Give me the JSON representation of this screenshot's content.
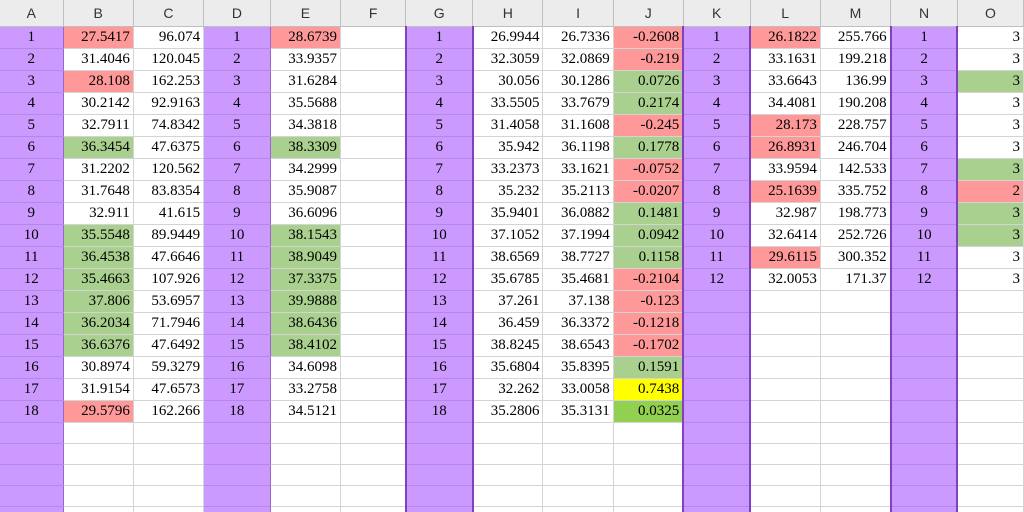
{
  "colors": {
    "purple": "#cc99ff",
    "red": "#ff9999",
    "green": "#a9d08e",
    "yellow": "#ffff00",
    "brightgreen": "#92d050"
  },
  "columns": [
    "A",
    "B",
    "C",
    "D",
    "E",
    "F",
    "G",
    "H",
    "I",
    "J",
    "K",
    "L",
    "M",
    "N",
    "O"
  ],
  "grid": [
    [
      [
        "1",
        ""
      ],
      [
        "27.5417",
        "r"
      ],
      [
        "96.074",
        ""
      ],
      [
        "1",
        ""
      ],
      [
        "28.6739",
        "r"
      ],
      [
        "",
        ""
      ],
      [
        "1",
        ""
      ],
      [
        "26.9944",
        ""
      ],
      [
        "26.7336",
        ""
      ],
      [
        "-0.2608",
        "r"
      ],
      [
        "1",
        ""
      ],
      [
        "26.1822",
        "r"
      ],
      [
        "255.766",
        ""
      ],
      [
        "1",
        ""
      ],
      [
        "3",
        ""
      ]
    ],
    [
      [
        "2",
        ""
      ],
      [
        "31.4046",
        ""
      ],
      [
        "120.045",
        ""
      ],
      [
        "2",
        ""
      ],
      [
        "33.9357",
        ""
      ],
      [
        "",
        ""
      ],
      [
        "2",
        ""
      ],
      [
        "32.3059",
        ""
      ],
      [
        "32.0869",
        ""
      ],
      [
        "-0.219",
        "r"
      ],
      [
        "2",
        ""
      ],
      [
        "33.1631",
        ""
      ],
      [
        "199.218",
        ""
      ],
      [
        "2",
        ""
      ],
      [
        "3",
        ""
      ]
    ],
    [
      [
        "3",
        ""
      ],
      [
        "28.108",
        "r"
      ],
      [
        "162.253",
        ""
      ],
      [
        "3",
        ""
      ],
      [
        "31.6284",
        ""
      ],
      [
        "",
        ""
      ],
      [
        "3",
        ""
      ],
      [
        "30.056",
        ""
      ],
      [
        "30.1286",
        ""
      ],
      [
        "0.0726",
        "g"
      ],
      [
        "3",
        ""
      ],
      [
        "33.6643",
        ""
      ],
      [
        "136.99",
        ""
      ],
      [
        "3",
        ""
      ],
      [
        "3",
        "g"
      ]
    ],
    [
      [
        "4",
        ""
      ],
      [
        "30.2142",
        ""
      ],
      [
        "92.9163",
        ""
      ],
      [
        "4",
        ""
      ],
      [
        "35.5688",
        ""
      ],
      [
        "",
        ""
      ],
      [
        "4",
        ""
      ],
      [
        "33.5505",
        ""
      ],
      [
        "33.7679",
        ""
      ],
      [
        "0.2174",
        "g"
      ],
      [
        "4",
        ""
      ],
      [
        "34.4081",
        ""
      ],
      [
        "190.208",
        ""
      ],
      [
        "4",
        ""
      ],
      [
        "3",
        ""
      ]
    ],
    [
      [
        "5",
        ""
      ],
      [
        "32.7911",
        ""
      ],
      [
        "74.8342",
        ""
      ],
      [
        "5",
        ""
      ],
      [
        "34.3818",
        ""
      ],
      [
        "",
        ""
      ],
      [
        "5",
        ""
      ],
      [
        "31.4058",
        ""
      ],
      [
        "31.1608",
        ""
      ],
      [
        "-0.245",
        "r"
      ],
      [
        "5",
        ""
      ],
      [
        "28.173",
        "r"
      ],
      [
        "228.757",
        ""
      ],
      [
        "5",
        ""
      ],
      [
        "3",
        ""
      ]
    ],
    [
      [
        "6",
        ""
      ],
      [
        "36.3454",
        "g"
      ],
      [
        "47.6375",
        ""
      ],
      [
        "6",
        ""
      ],
      [
        "38.3309",
        "g"
      ],
      [
        "",
        ""
      ],
      [
        "6",
        ""
      ],
      [
        "35.942",
        ""
      ],
      [
        "36.1198",
        ""
      ],
      [
        "0.1778",
        "g"
      ],
      [
        "6",
        ""
      ],
      [
        "26.8931",
        "r"
      ],
      [
        "246.704",
        ""
      ],
      [
        "6",
        ""
      ],
      [
        "3",
        ""
      ]
    ],
    [
      [
        "7",
        ""
      ],
      [
        "31.2202",
        ""
      ],
      [
        "120.562",
        ""
      ],
      [
        "7",
        ""
      ],
      [
        "34.2999",
        ""
      ],
      [
        "",
        ""
      ],
      [
        "7",
        ""
      ],
      [
        "33.2373",
        ""
      ],
      [
        "33.1621",
        ""
      ],
      [
        "-0.0752",
        "r"
      ],
      [
        "7",
        ""
      ],
      [
        "33.9594",
        ""
      ],
      [
        "142.533",
        ""
      ],
      [
        "7",
        ""
      ],
      [
        "3",
        "g"
      ]
    ],
    [
      [
        "8",
        ""
      ],
      [
        "31.7648",
        ""
      ],
      [
        "83.8354",
        ""
      ],
      [
        "8",
        ""
      ],
      [
        "35.9087",
        ""
      ],
      [
        "",
        ""
      ],
      [
        "8",
        ""
      ],
      [
        "35.232",
        ""
      ],
      [
        "35.2113",
        ""
      ],
      [
        "-0.0207",
        "r"
      ],
      [
        "8",
        ""
      ],
      [
        "25.1639",
        "r"
      ],
      [
        "335.752",
        ""
      ],
      [
        "8",
        ""
      ],
      [
        "2",
        "r"
      ]
    ],
    [
      [
        "9",
        ""
      ],
      [
        "32.911",
        ""
      ],
      [
        "41.615",
        ""
      ],
      [
        "9",
        ""
      ],
      [
        "36.6096",
        ""
      ],
      [
        "",
        ""
      ],
      [
        "9",
        ""
      ],
      [
        "35.9401",
        ""
      ],
      [
        "36.0882",
        ""
      ],
      [
        "0.1481",
        "g"
      ],
      [
        "9",
        ""
      ],
      [
        "32.987",
        ""
      ],
      [
        "198.773",
        ""
      ],
      [
        "9",
        ""
      ],
      [
        "3",
        "g"
      ]
    ],
    [
      [
        "10",
        ""
      ],
      [
        "35.5548",
        "g"
      ],
      [
        "89.9449",
        ""
      ],
      [
        "10",
        ""
      ],
      [
        "38.1543",
        "g"
      ],
      [
        "",
        ""
      ],
      [
        "10",
        ""
      ],
      [
        "37.1052",
        ""
      ],
      [
        "37.1994",
        ""
      ],
      [
        "0.0942",
        "g"
      ],
      [
        "10",
        ""
      ],
      [
        "32.6414",
        ""
      ],
      [
        "252.726",
        ""
      ],
      [
        "10",
        ""
      ],
      [
        "3",
        "g"
      ]
    ],
    [
      [
        "11",
        ""
      ],
      [
        "36.4538",
        "g"
      ],
      [
        "47.6646",
        ""
      ],
      [
        "11",
        ""
      ],
      [
        "38.9049",
        "g"
      ],
      [
        "",
        ""
      ],
      [
        "11",
        ""
      ],
      [
        "38.6569",
        ""
      ],
      [
        "38.7727",
        ""
      ],
      [
        "0.1158",
        "g"
      ],
      [
        "11",
        ""
      ],
      [
        "29.6115",
        "r"
      ],
      [
        "300.352",
        ""
      ],
      [
        "11",
        ""
      ],
      [
        "3",
        ""
      ]
    ],
    [
      [
        "12",
        ""
      ],
      [
        "35.4663",
        "g"
      ],
      [
        "107.926",
        ""
      ],
      [
        "12",
        ""
      ],
      [
        "37.3375",
        "g"
      ],
      [
        "",
        ""
      ],
      [
        "12",
        ""
      ],
      [
        "35.6785",
        ""
      ],
      [
        "35.4681",
        ""
      ],
      [
        "-0.2104",
        "r"
      ],
      [
        "12",
        ""
      ],
      [
        "32.0053",
        ""
      ],
      [
        "171.37",
        ""
      ],
      [
        "12",
        ""
      ],
      [
        "3",
        ""
      ]
    ],
    [
      [
        "13",
        ""
      ],
      [
        "37.806",
        "g"
      ],
      [
        "53.6957",
        ""
      ],
      [
        "13",
        ""
      ],
      [
        "39.9888",
        "g"
      ],
      [
        "",
        ""
      ],
      [
        "13",
        ""
      ],
      [
        "37.261",
        ""
      ],
      [
        "37.138",
        ""
      ],
      [
        "-0.123",
        "r"
      ],
      [
        "",
        ""
      ],
      [
        "",
        ""
      ],
      [
        "",
        ""
      ],
      [
        "",
        ""
      ],
      [
        "",
        ""
      ]
    ],
    [
      [
        "14",
        ""
      ],
      [
        "36.2034",
        "g"
      ],
      [
        "71.7946",
        ""
      ],
      [
        "14",
        ""
      ],
      [
        "38.6436",
        "g"
      ],
      [
        "",
        ""
      ],
      [
        "14",
        ""
      ],
      [
        "36.459",
        ""
      ],
      [
        "36.3372",
        ""
      ],
      [
        "-0.1218",
        "r"
      ],
      [
        "",
        ""
      ],
      [
        "",
        ""
      ],
      [
        "",
        ""
      ],
      [
        "",
        ""
      ],
      [
        "",
        ""
      ]
    ],
    [
      [
        "15",
        ""
      ],
      [
        "36.6376",
        "g"
      ],
      [
        "47.6492",
        ""
      ],
      [
        "15",
        ""
      ],
      [
        "38.4102",
        "g"
      ],
      [
        "",
        ""
      ],
      [
        "15",
        ""
      ],
      [
        "38.8245",
        ""
      ],
      [
        "38.6543",
        ""
      ],
      [
        "-0.1702",
        "r"
      ],
      [
        "",
        ""
      ],
      [
        "",
        ""
      ],
      [
        "",
        ""
      ],
      [
        "",
        ""
      ],
      [
        "",
        ""
      ]
    ],
    [
      [
        "16",
        ""
      ],
      [
        "30.8974",
        ""
      ],
      [
        "59.3279",
        ""
      ],
      [
        "16",
        ""
      ],
      [
        "34.6098",
        ""
      ],
      [
        "",
        ""
      ],
      [
        "16",
        ""
      ],
      [
        "35.6804",
        ""
      ],
      [
        "35.8395",
        ""
      ],
      [
        "0.1591",
        "g"
      ],
      [
        "",
        ""
      ],
      [
        "",
        ""
      ],
      [
        "",
        ""
      ],
      [
        "",
        ""
      ],
      [
        "",
        ""
      ]
    ],
    [
      [
        "17",
        ""
      ],
      [
        "31.9154",
        ""
      ],
      [
        "47.6573",
        ""
      ],
      [
        "17",
        ""
      ],
      [
        "33.2758",
        ""
      ],
      [
        "",
        ""
      ],
      [
        "17",
        ""
      ],
      [
        "32.262",
        ""
      ],
      [
        "33.0058",
        ""
      ],
      [
        "0.7438",
        "y"
      ],
      [
        "",
        ""
      ],
      [
        "",
        ""
      ],
      [
        "",
        ""
      ],
      [
        "",
        ""
      ],
      [
        "",
        ""
      ]
    ],
    [
      [
        "18",
        ""
      ],
      [
        "29.5796",
        "r"
      ],
      [
        "162.266",
        ""
      ],
      [
        "18",
        ""
      ],
      [
        "34.5121",
        ""
      ],
      [
        "",
        ""
      ],
      [
        "18",
        ""
      ],
      [
        "35.2806",
        ""
      ],
      [
        "35.3131",
        ""
      ],
      [
        "0.0325",
        "bg"
      ],
      [
        "",
        ""
      ],
      [
        "",
        ""
      ],
      [
        "",
        ""
      ],
      [
        "",
        ""
      ],
      [
        "",
        ""
      ]
    ],
    [
      [
        "",
        ""
      ],
      [
        "",
        ""
      ],
      [
        "",
        ""
      ],
      [
        "",
        ""
      ],
      [
        "",
        ""
      ],
      [
        "",
        ""
      ],
      [
        "",
        ""
      ],
      [
        "",
        ""
      ],
      [
        "",
        ""
      ],
      [
        "",
        ""
      ],
      [
        "",
        ""
      ],
      [
        "",
        ""
      ],
      [
        "",
        ""
      ],
      [
        "",
        ""
      ],
      [
        "",
        ""
      ]
    ],
    [
      [
        "",
        ""
      ],
      [
        "",
        ""
      ],
      [
        "",
        ""
      ],
      [
        "",
        ""
      ],
      [
        "",
        ""
      ],
      [
        "",
        ""
      ],
      [
        "",
        ""
      ],
      [
        "",
        ""
      ],
      [
        "",
        ""
      ],
      [
        "",
        ""
      ],
      [
        "",
        ""
      ],
      [
        "",
        ""
      ],
      [
        "",
        ""
      ],
      [
        "",
        ""
      ],
      [
        "",
        ""
      ]
    ],
    [
      [
        "",
        ""
      ],
      [
        "",
        ""
      ],
      [
        "",
        ""
      ],
      [
        "",
        ""
      ],
      [
        "",
        ""
      ],
      [
        "",
        ""
      ],
      [
        "",
        ""
      ],
      [
        "",
        ""
      ],
      [
        "",
        ""
      ],
      [
        "",
        ""
      ],
      [
        "",
        ""
      ],
      [
        "",
        ""
      ],
      [
        "",
        ""
      ],
      [
        "",
        ""
      ],
      [
        "",
        ""
      ]
    ],
    [
      [
        "",
        ""
      ],
      [
        "",
        ""
      ],
      [
        "",
        ""
      ],
      [
        "",
        ""
      ],
      [
        "",
        ""
      ],
      [
        "",
        ""
      ],
      [
        "",
        ""
      ],
      [
        "",
        ""
      ],
      [
        "",
        ""
      ],
      [
        "",
        ""
      ],
      [
        "",
        ""
      ],
      [
        "",
        ""
      ],
      [
        "",
        ""
      ],
      [
        "",
        ""
      ],
      [
        "",
        ""
      ]
    ],
    [
      [
        "",
        ""
      ],
      [
        "",
        ""
      ],
      [
        "",
        ""
      ],
      [
        "",
        ""
      ],
      [
        "",
        ""
      ],
      [
        "",
        ""
      ],
      [
        "",
        ""
      ],
      [
        "",
        ""
      ],
      [
        "",
        ""
      ],
      [
        "",
        ""
      ],
      [
        "",
        ""
      ],
      [
        "",
        ""
      ],
      [
        "",
        ""
      ],
      [
        "",
        ""
      ],
      [
        "",
        ""
      ]
    ]
  ]
}
